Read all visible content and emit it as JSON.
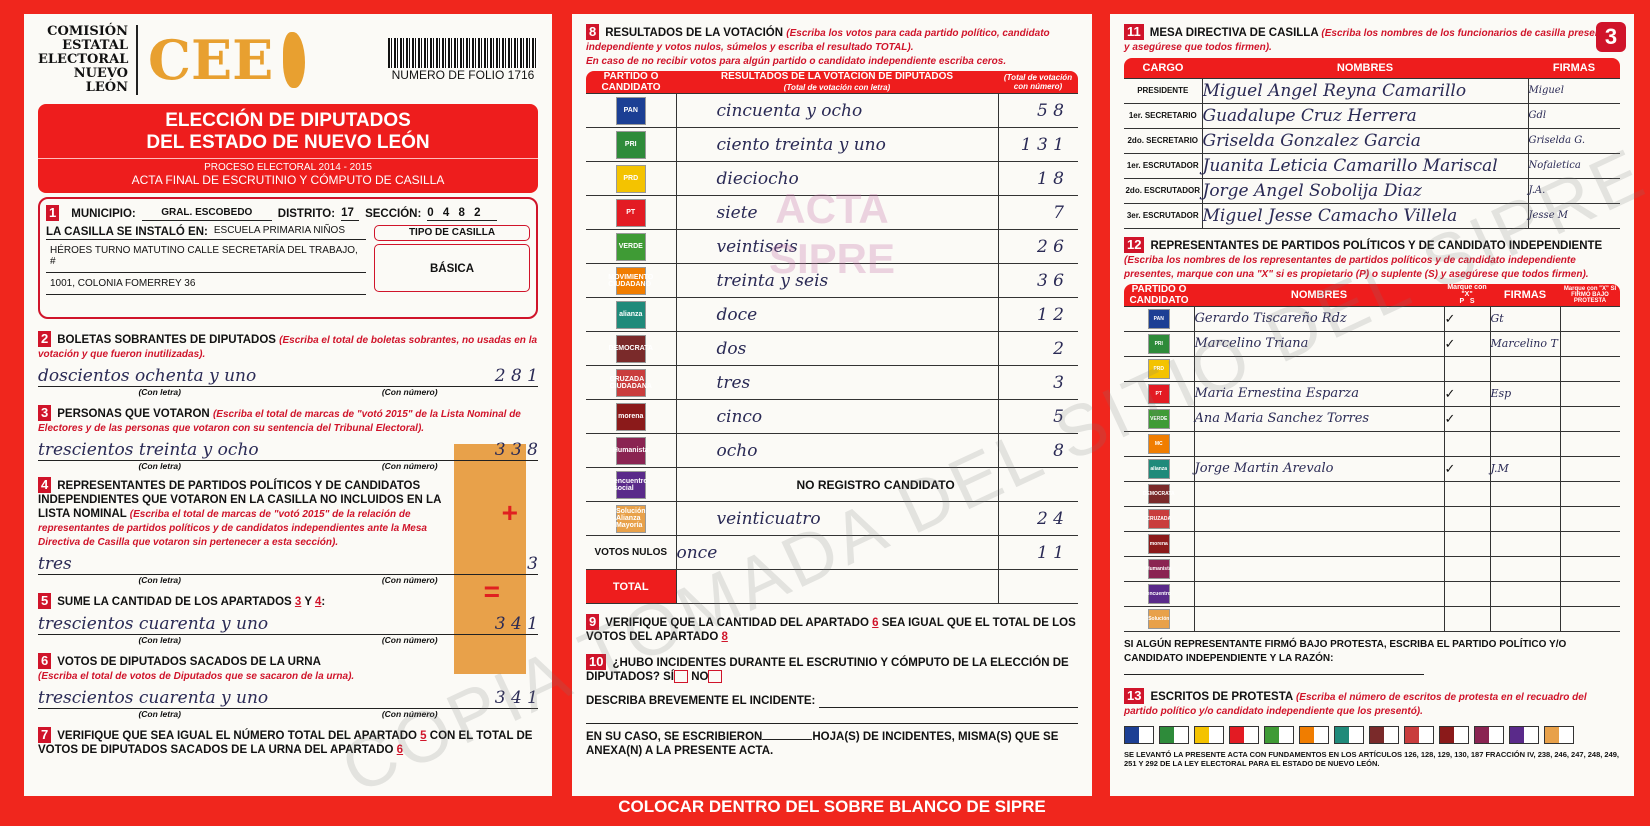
{
  "header": {
    "org_lines": [
      "COMISIÓN",
      "ESTATAL",
      "ELECTORAL",
      "NUEVO LEÓN"
    ],
    "logo_text": "CEE",
    "folio": "NUMERO DE FOLIO 1716",
    "title_lines": [
      "ELECCIÓN DE DIPUTADOS",
      "DEL ESTADO DE NUEVO LEÓN"
    ],
    "proceso": "PROCESO ELECTORAL 2014 - 2015",
    "acta": "ACTA FINAL DE ESCRUTINIO Y CÓMPUTO DE CASILLA",
    "page_number": "3"
  },
  "s1": {
    "n": "1",
    "municipio_label": "MUNICIPIO:",
    "municipio": "GRAL. ESCOBEDO",
    "distrito_label": "DISTRITO:",
    "distrito": "17",
    "seccion_label": "SECCIÓN:",
    "seccion": "0 4 8 2",
    "instalo_label": "LA CASILLA SE INSTALÓ EN:",
    "direccion": [
      "ESCUELA PRIMARIA NIÑOS",
      "HÉROES TURNO MATUTINO CALLE SECRETARÍA DEL TRABAJO, #",
      "1001, COLONIA FOMERREY 36"
    ],
    "tipo_label": "TIPO DE CASILLA",
    "tipo": "BÁSICA"
  },
  "labels": {
    "con_letra": "(Con letra)",
    "con_numero": "(Con número)",
    "plus": "+",
    "equals": "="
  },
  "s2": {
    "n": "2",
    "title": "BOLETAS SOBRANTES DE DIPUTADOS",
    "inst": "(Escriba el total de boletas sobrantes, no usadas en la votación y que fueron inutilizadas).",
    "letra": "doscientos ochenta y uno",
    "numero": "2 8 1"
  },
  "s3": {
    "n": "3",
    "title": "PERSONAS QUE VOTARON",
    "inst": "(Escriba el total de marcas de \"votó 2015\" de la Lista Nominal de Electores y de las personas que votaron con su sentencia del Tribunal Electoral).",
    "letra": "trescientos treinta y ocho",
    "numero": "3 3 8"
  },
  "s4": {
    "n": "4",
    "title": "REPRESENTANTES DE PARTIDOS POLÍTICOS Y DE CANDIDATOS INDEPENDIENTES QUE VOTARON EN LA CASILLA NO INCLUIDOS EN LA LISTA NOMINAL",
    "inst": "(Escriba el total de marcas de \"votó 2015\" de la relación de representantes de partidos políticos y de candidatos independientes ante la Mesa Directiva de Casilla que votaron sin pertenecer a esta sección).",
    "letra": "tres",
    "numero": "3"
  },
  "s5": {
    "n": "5",
    "title": "SUME LA CANTIDAD DE LOS APARTADOS",
    "a": "3",
    "y": "Y",
    "b": "4",
    "letra": "trescientos cuarenta y uno",
    "numero": "3 4 1"
  },
  "s6": {
    "n": "6",
    "title": "VOTOS DE DIPUTADOS SACADOS DE LA URNA",
    "inst": "(Escriba el total de votos de Diputados que se sacaron de la urna).",
    "letra": "trescientos cuarenta y uno",
    "numero": "3 4 1"
  },
  "s7": {
    "n": "7",
    "text1": "VERIFIQUE QUE SEA IGUAL EL NÚMERO TOTAL DEL APARTADO",
    "a": "5",
    "text2": "CON EL TOTAL DE VOTOS DE DIPUTADOS SACADOS DE LA URNA DEL APARTADO",
    "b": "6"
  },
  "s8": {
    "n": "8",
    "title": "RESULTADOS DE LA VOTACIÓN",
    "inst": "(Escriba los votos para cada partido político, candidato independiente y votos nulos, súmelos y escriba el resultado TOTAL).",
    "inst2": "En caso de no recibir votos para algún partido o candidato independiente escriba ceros.",
    "col1": "PARTIDO O CANDIDATO",
    "col2": "RESULTADOS DE LA VOTACIÓN DE DIPUTADOS",
    "col2_sub": "(Total de votación con letra)",
    "col3": "(Total de votación con número)",
    "rows": [
      {
        "party": "PAN",
        "color": "#1c3f94",
        "letra": "cincuenta y ocho",
        "numero": "5 8"
      },
      {
        "party": "PRI",
        "color": "#2e8b3a",
        "letra": "ciento treinta y uno",
        "numero": "1 3 1"
      },
      {
        "party": "PRD",
        "color": "#f4c300",
        "letra": "dieciocho",
        "numero": "1 8"
      },
      {
        "party": "PT",
        "color": "#e31b23",
        "letra": "siete",
        "numero": "7"
      },
      {
        "party": "VERDE",
        "color": "#3f9b35",
        "letra": "veintiseis",
        "numero": "2 6"
      },
      {
        "party": "MOVIMIENTO CIUDADANO",
        "color": "#f07d00",
        "letra": "treinta y seis",
        "numero": "3 6"
      },
      {
        "party": "alianza",
        "color": "#1f8a7a",
        "letra": "doce",
        "numero": "1 2"
      },
      {
        "party": "DEMOCRATA",
        "color": "#7a2a2a",
        "letra": "dos",
        "numero": "2"
      },
      {
        "party": "CRUZADA CIUDADANA",
        "color": "#c93d3d",
        "letra": "tres",
        "numero": "3"
      },
      {
        "party": "morena",
        "color": "#8b1a1a",
        "letra": "cinco",
        "numero": "5"
      },
      {
        "party": "Humanista",
        "color": "#8a2452",
        "letra": "ocho",
        "numero": "8"
      },
      {
        "party": "encuentro social",
        "color": "#5a2a8a",
        "letra": "NO REGISTRO CANDIDATO",
        "numero": ""
      },
      {
        "party": "Solución Alianza Mayoría",
        "color": "#e8a14a",
        "letra": "veinticuatro",
        "numero": "2 4"
      }
    ],
    "nulos_label": "VOTOS NULOS",
    "nulos_letra": "once",
    "nulos_numero": "1 1",
    "total_label": "TOTAL",
    "total_letra": "",
    "total_numero": ""
  },
  "s9": {
    "n": "9",
    "text1": "VERIFIQUE QUE LA CANTIDAD DEL APARTADO",
    "a": "6",
    "text2": "SEA IGUAL QUE EL TOTAL DE LOS VOTOS DEL APARTADO",
    "b": "8"
  },
  "s10": {
    "n": "10",
    "q": "¿HUBO INCIDENTES DURANTE EL ESCRUTINIO Y CÓMPUTO DE LA ELECCIÓN DE DIPUTADOS?",
    "si": "SÍ",
    "no": "NO",
    "describa": "DESCRIBA BREVEMENTE EL INCIDENTE:",
    "hojas1": "EN SU CASO, SE ESCRIBIERON",
    "hojas2": "HOJA(S) DE INCIDENTES, MISMA(S) QUE SE ANEXA(N) A LA PRESENTE ACTA."
  },
  "s11": {
    "n": "11",
    "title": "MESA DIRECTIVA DE CASILLA",
    "inst": "(Escriba los nombres de los funcionarios de casilla presentes y asegúrese que todos firmen).",
    "cols": [
      "CARGO",
      "NOMBRES",
      "FIRMAS"
    ],
    "rows": [
      {
        "cargo": "PRESIDENTE",
        "nombre": "Miguel Angel Reyna Camarillo",
        "firma": "Miguel"
      },
      {
        "cargo": "1er. SECRETARIO",
        "nombre": "Guadalupe Cruz Herrera",
        "firma": "Gdl"
      },
      {
        "cargo": "2do. SECRETARIO",
        "nombre": "Griselda Gonzalez Garcia",
        "firma": "Griselda G."
      },
      {
        "cargo": "1er. ESCRUTADOR",
        "nombre": "Juanita Leticia Camarillo Mariscal",
        "firma": "Nofaletica"
      },
      {
        "cargo": "2do. ESCRUTADOR",
        "nombre": "Jorge Angel Sobolija Diaz",
        "firma": "J.A."
      },
      {
        "cargo": "3er. ESCRUTADOR",
        "nombre": "Miguel Jesse Camacho Villela",
        "firma": "Jesse M"
      }
    ]
  },
  "s12": {
    "n": "12",
    "title": "REPRESENTANTES DE PARTIDOS POLÍTICOS Y DE CANDIDATO INDEPENDIENTE",
    "inst": "(Escriba los nombres de los representantes de partidos políticos y de candidato independiente presentes, marque con una \"X\" si es propietario (P) o suplente (S) y asegúrese que todos firmen).",
    "cols": [
      "PARTIDO O CANDIDATO",
      "NOMBRES",
      "P",
      "S",
      "FIRMAS"
    ],
    "marque1": "Marque con \"X\"",
    "marque2": "Marque con \"X\" SI FIRMÓ BAJO PROTESTA",
    "rows": [
      {
        "party": "PAN",
        "color": "#1c3f94",
        "nombre": "Gerardo Tiscareño Rdz",
        "p": "✓",
        "firma": "Gt"
      },
      {
        "party": "PRI",
        "color": "#2e8b3a",
        "nombre": "Marcelino Triana",
        "p": "✓",
        "firma": "Marcelino T"
      },
      {
        "party": "PRD",
        "color": "#f4c300",
        "nombre": "",
        "p": "",
        "firma": ""
      },
      {
        "party": "PT",
        "color": "#e31b23",
        "nombre": "Maria Ernestina Esparza",
        "p": "✓",
        "firma": "Esp"
      },
      {
        "party": "VERDE",
        "color": "#3f9b35",
        "nombre": "Ana Maria Sanchez Torres",
        "p": "✓",
        "firma": ""
      },
      {
        "party": "MC",
        "color": "#f07d00",
        "nombre": "",
        "p": "",
        "firma": ""
      },
      {
        "party": "alianza",
        "color": "#1f8a7a",
        "nombre": "Jorge Martin Arevalo",
        "p": "✓",
        "firma": "J.M"
      },
      {
        "party": "DEMOCRATA",
        "color": "#7a2a2a",
        "nombre": "",
        "p": "",
        "firma": ""
      },
      {
        "party": "CRUZADA",
        "color": "#c93d3d",
        "nombre": "",
        "p": "",
        "firma": ""
      },
      {
        "party": "morena",
        "color": "#8b1a1a",
        "nombre": "",
        "p": "",
        "firma": ""
      },
      {
        "party": "Humanista",
        "color": "#8a2452",
        "nombre": "",
        "p": "",
        "firma": ""
      },
      {
        "party": "encuentro",
        "color": "#5a2a8a",
        "nombre": "",
        "p": "",
        "firma": ""
      },
      {
        "party": "Solución",
        "color": "#e8a14a",
        "nombre": "",
        "p": "",
        "firma": ""
      }
    ],
    "protesta": "SI ALGÚN REPRESENTANTE FIRMÓ BAJO PROTESTA, ESCRIBA EL PARTIDO POLÍTICO Y/O CANDIDATO INDEPENDIENTE Y LA RAZÓN:"
  },
  "s13": {
    "n": "13",
    "title": "ESCRITOS DE PROTESTA",
    "inst": "(Escriba el número de escritos de protesta en el recuadro del partido político y/o candidato independiente que los presentó).",
    "legal": "SE LEVANTÓ LA PRESENTE ACTA CON FUNDAMENTOS EN LOS ARTÍCULOS 126, 128, 129, 130, 187 FRACCIÓN IV, 238, 246, 247, 248, 249, 251 Y 292 DE LA LEY ELECTORAL PARA EL ESTADO DE NUEVO LEÓN."
  },
  "footer": "COLOCAR DENTRO DEL SOBRE BLANCO DE SIPRE",
  "watermarks": {
    "main": "COPIA TOMADA DEL SITIO DEL SIPRE",
    "stamp": "ACTA SIPRE"
  }
}
